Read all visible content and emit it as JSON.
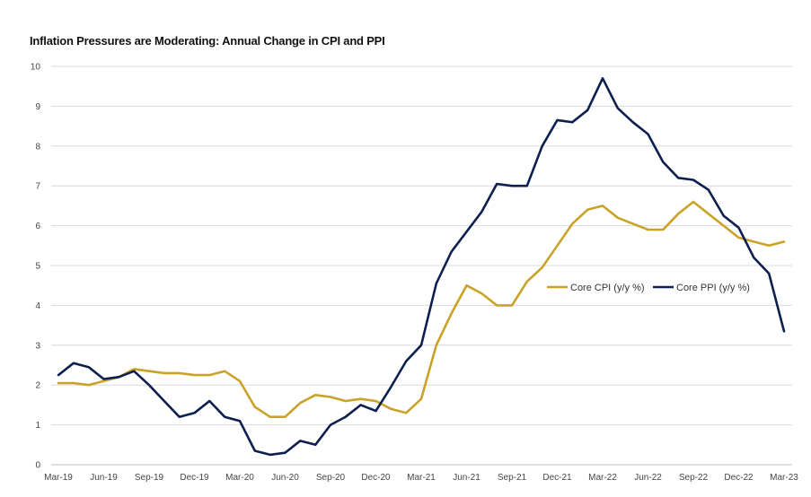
{
  "chart_data": {
    "type": "line",
    "title": "Inflation Pressures are Moderating: Annual Change in CPI and PPI",
    "xlabel": "",
    "ylabel": "",
    "ylim": [
      0,
      10
    ],
    "y_ticks": [
      "0",
      "1",
      "2",
      "3",
      "4",
      "5",
      "6",
      "7",
      "8",
      "9",
      "10"
    ],
    "grid": true,
    "legend_position": "right-middle",
    "x_tick_labels": [
      "Mar-19",
      "Jun-19",
      "Sep-19",
      "Dec-19",
      "Mar-20",
      "Jun-20",
      "Sep-20",
      "Dec-20",
      "Mar-21",
      "Jun-21",
      "Sep-21",
      "Dec-21",
      "Mar-22",
      "Jun-22",
      "Sep-22",
      "Dec-22",
      "Mar-23"
    ],
    "series": [
      {
        "name": "Core CPI (y/y %)",
        "color": "#C9A227",
        "values": [
          2.05,
          2.05,
          2.0,
          2.1,
          2.2,
          2.4,
          2.35,
          2.3,
          2.3,
          2.25,
          2.25,
          2.35,
          2.1,
          1.45,
          1.2,
          1.2,
          1.55,
          1.75,
          1.7,
          1.6,
          1.65,
          1.6,
          1.4,
          1.3,
          1.65,
          3.0,
          3.8,
          4.5,
          4.3,
          4.0,
          4.0,
          4.6,
          4.95,
          5.5,
          6.05,
          6.4,
          6.5,
          6.2,
          6.05,
          5.9,
          5.9,
          6.3,
          6.6,
          6.3,
          6.0,
          5.7,
          5.6,
          5.5,
          5.6
        ]
      },
      {
        "name": "Core PPI (y/y %)",
        "color": "#0D1F4F",
        "values": [
          2.25,
          2.55,
          2.45,
          2.15,
          2.2,
          2.35,
          2.0,
          1.6,
          1.2,
          1.3,
          1.6,
          1.2,
          1.1,
          0.35,
          0.25,
          0.3,
          0.6,
          0.5,
          1.0,
          1.2,
          1.5,
          1.35,
          1.95,
          2.6,
          3.0,
          4.55,
          5.35,
          5.85,
          6.35,
          7.05,
          7.0,
          7.0,
          8.0,
          8.65,
          8.6,
          8.9,
          9.7,
          8.95,
          8.6,
          8.3,
          7.6,
          7.2,
          7.15,
          6.9,
          6.25,
          5.95,
          5.2,
          4.8,
          3.35
        ]
      }
    ]
  }
}
